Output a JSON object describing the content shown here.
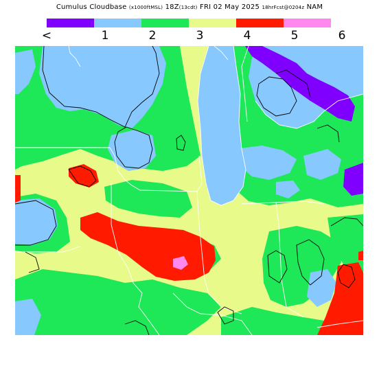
{
  "header": {
    "title_main": "Cumulus Cloudbase",
    "title_units": "(x1000ftMSL)",
    "title_time": "18Z",
    "title_time_note": "(13cdt)",
    "title_date": "FRI 02 May 2025",
    "title_forecast": "18hrFcst@0204z",
    "title_model": "NAM"
  },
  "legend": {
    "labels": [
      "<",
      "1",
      "2",
      "3",
      "4",
      "5",
      "6"
    ],
    "colors": [
      "#7f00ff",
      "#87c8ff",
      "#1fe858",
      "#e8fa8a",
      "#ff1a00",
      "#ff88ee"
    ]
  },
  "map": {
    "fill_colors": {
      "under_1": "#7f00ff",
      "1_to_2": "#87c8ff",
      "2_to_3": "#1fe858",
      "3_to_4": "#e8fa8a",
      "4_to_5": "#ff1a00",
      "5_to_6": "#ff88ee"
    },
    "contour_color": "#000000",
    "boundary_color": "#ffffff"
  }
}
